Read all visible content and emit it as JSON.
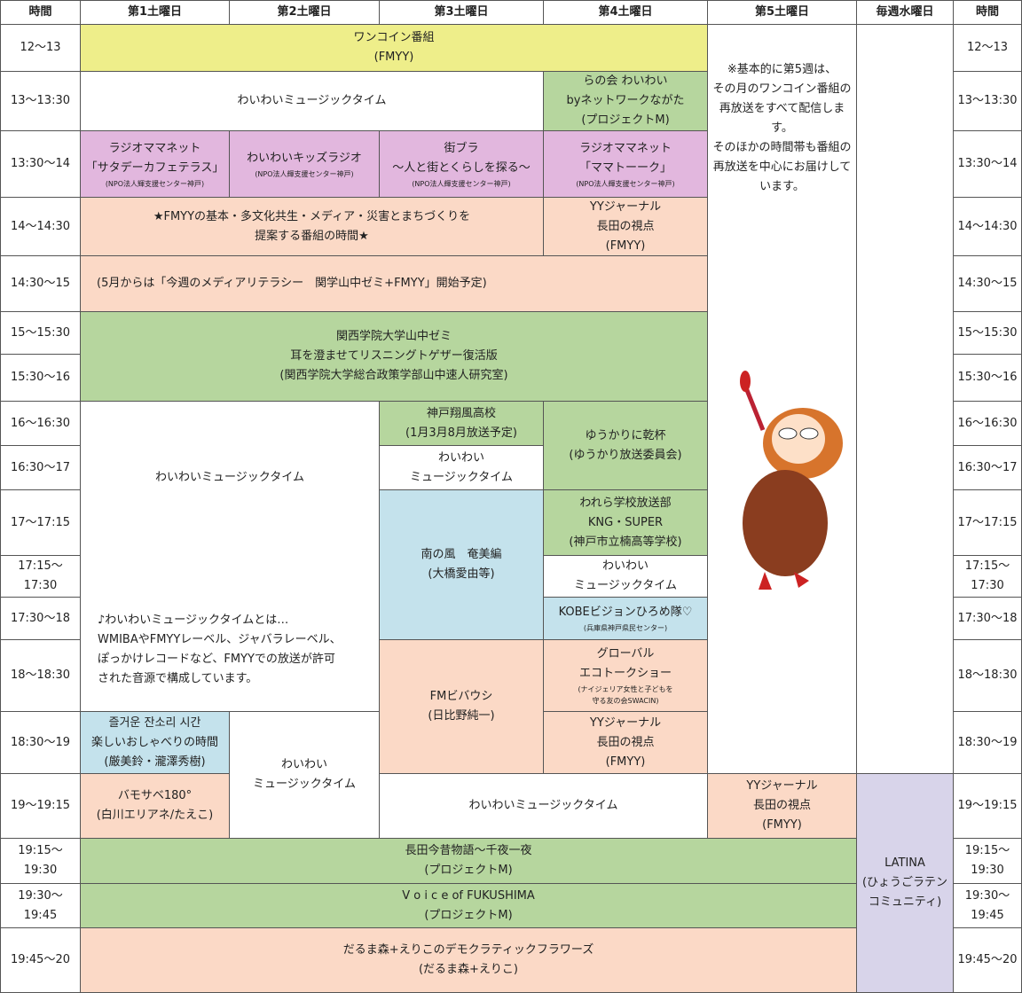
{
  "headers": [
    "時間",
    "第1土曜日",
    "第2土曜日",
    "第3土曜日",
    "第4土曜日",
    "第5土曜日",
    "毎週水曜日",
    "時間"
  ],
  "times": [
    [
      "12～13"
    ],
    [
      "13～13:30"
    ],
    [
      "13:30～14"
    ],
    [
      "14～14:30"
    ],
    [
      "14:30～15"
    ],
    [
      "15～15:30"
    ],
    [
      "15:30～16"
    ],
    [
      "16～16:30"
    ],
    [
      "16:30～17"
    ],
    [
      "17～17:15"
    ],
    [
      "17:15～",
      "17:30"
    ],
    [
      "17:30～18"
    ],
    [
      "18～18:30"
    ],
    [
      "18:30～19"
    ],
    [
      "19～19:15"
    ],
    [
      "19:15～",
      "19:30"
    ],
    [
      "19:30～",
      "19:45"
    ],
    [
      "19:45～20"
    ]
  ],
  "blocks": [
    {
      "lines": [
        "ワンコイン番組",
        "(FMYY)"
      ]
    },
    {
      "lines": [
        "わいわいミュージックタイム"
      ]
    },
    {
      "lines": [
        "らの会 わいわい",
        "byネットワークながた",
        "(プロジェクトM)"
      ]
    },
    {
      "lines": [
        "ラジオママネット",
        "「サタデーカフェテラス」",
        "(NPO法人輝支援センター神戸)"
      ]
    },
    {
      "lines": [
        "わいわいキッズラジオ",
        "(NPO法人輝支援センター神戸)"
      ]
    },
    {
      "lines": [
        "街ブラ",
        "～人と街とくらしを探る～",
        "(NPO法人輝支援センター神戸)"
      ]
    },
    {
      "lines": [
        "ラジオママネット",
        "「ママトーーク」",
        "(NPO法人輝支援センター神戸)"
      ]
    },
    {
      "lines": [
        "★FMYYの基本・多文化共生・メディア・災害とまちづくりを",
        "提案する番組の時間★"
      ]
    },
    {
      "lines": [
        "(5月からは「今週のメディアリテラシー　関学山中ゼミ+FMYY」開始予定)"
      ]
    },
    {
      "lines": [
        "YYジャーナル",
        "長田の視点",
        "(FMYY)"
      ]
    },
    {
      "lines": [
        "※基本的に第5週は、",
        "その月のワンコイン番組の",
        "再放送をすべて配信しま",
        "す。",
        "そのほかの時間帯も番組の",
        "再放送を中心にお届けして",
        "います。"
      ]
    },
    {
      "lines": []
    },
    {
      "lines": [
        "LATINA",
        "(ひょうごラテン",
        "コミュニティ)"
      ]
    },
    {
      "lines": [
        "関西学院大学山中ゼミ",
        "耳を澄ませてリスニングトゲザー復活版",
        "(関西学院大学総合政策学部山中速人研究室)"
      ]
    },
    {
      "lines": [
        "わいわいミュージックタイム"
      ]
    },
    {
      "lines": [
        "♪わいわいミュージックタイムとは…",
        "WMIBAやFMYYレーベル、ジャバラレーベル、",
        "ぽっかけレコードなど、FMYYでの放送が許可",
        "された音源で構成しています。"
      ]
    },
    {
      "lines": [
        "わいわい",
        "ミュージックタイム"
      ]
    },
    {
      "lines": [
        "神戸翔風高校",
        "(1月3月8月放送予定)"
      ]
    },
    {
      "lines": [
        "わいわい",
        "ミュージックタイム"
      ]
    },
    {
      "lines": [
        "ゆうかりに乾杯",
        "(ゆうかり放送委員会)"
      ]
    },
    {
      "lines": [
        "われら学校放送部",
        "KNG・SUPER",
        "(神戸市立楠高等学校)"
      ]
    },
    {
      "lines": [
        "南の風　奄美編",
        "(大橋愛由等)"
      ]
    },
    {
      "lines": [
        "わいわい",
        "ミュージックタイム"
      ]
    },
    {
      "lines": [
        "KOBEビジョンひろめ隊♡",
        "(兵庫県神戸県民センター)"
      ]
    },
    {
      "lines": [
        "FMビバウシ",
        "(日比野純一)"
      ]
    },
    {
      "lines": [
        "グローバル",
        "エコトークショー",
        "(ナイジェリア女性と子どもを",
        "守る友の会SWACIN)"
      ]
    },
    {
      "lines": [
        "YYジャーナル",
        "長田の視点",
        "(FMYY)"
      ]
    },
    {
      "lines": [
        "즐거운 잔소리 시간",
        "楽しいおしゃべりの時間",
        "(厳美鈴・瀧澤秀樹)"
      ]
    },
    {
      "lines": [
        "バモサベ180°",
        "(白川エリアネ/たえこ)"
      ]
    },
    {
      "lines": [
        "わいわいミュージックタイム"
      ]
    },
    {
      "lines": [
        "YYジャーナル",
        "長田の視点",
        "(FMYY)"
      ]
    },
    {
      "lines": [
        "長田今昔物語～千夜一夜",
        "(プロジェクトM)"
      ]
    },
    {
      "lines": [
        "V o i c e  of FUKUSHIMA",
        "(プロジェクトM)"
      ]
    },
    {
      "lines": [
        "だるま森+えりこのデモクラティックフラワーズ",
        "(だるま森+えりこ)"
      ]
    }
  ]
}
